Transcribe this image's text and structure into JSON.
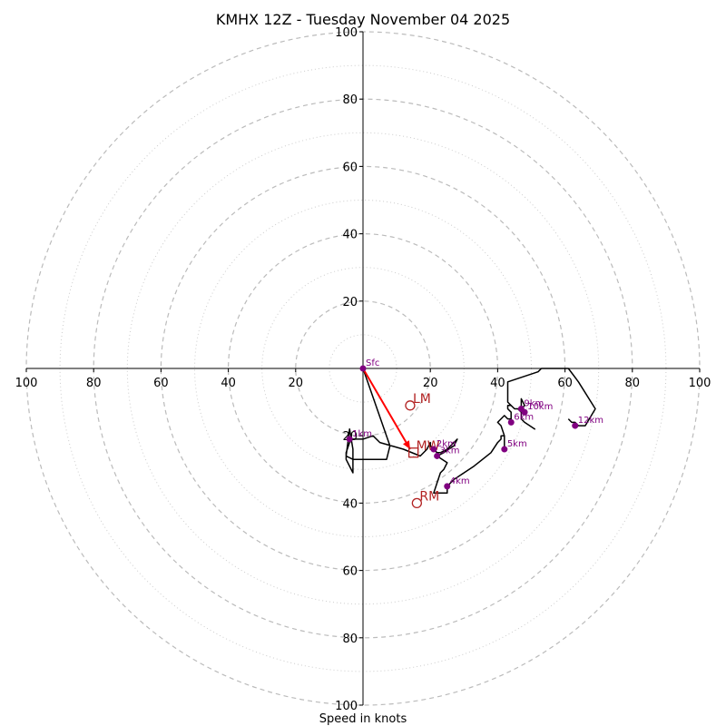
{
  "chart_data": {
    "type": "scatter",
    "title": "KMHX 12Z - Tuesday November 04 2025",
    "xlabel": "Speed in knots",
    "ylabel": "",
    "xlim": [
      -100,
      100
    ],
    "ylim": [
      -100,
      100
    ],
    "rings_major": [
      20,
      40,
      60,
      80,
      100
    ],
    "rings_minor": [
      10,
      30,
      50,
      70,
      90
    ],
    "x_tick_labels": [
      "100",
      "80",
      "60",
      "40",
      "20",
      "20",
      "40",
      "60",
      "80",
      "100"
    ],
    "x_tick_values": [
      -100,
      -80,
      -60,
      -40,
      -20,
      20,
      40,
      60,
      80,
      100
    ],
    "y_tick_labels": [
      "100",
      "80",
      "60",
      "40",
      "20",
      "20",
      "40",
      "60",
      "80",
      "100"
    ],
    "y_tick_values": [
      100,
      80,
      60,
      40,
      20,
      -20,
      -40,
      -60,
      -80,
      -100
    ],
    "colors": {
      "trace": "#000000",
      "height_marker": "#800080",
      "motion": "#b22222",
      "shear_vector": "#ff0000",
      "grid_major": "#bbbbbb",
      "grid_minor": "#cccccc"
    },
    "series": [
      {
        "name": "hodograph",
        "points": [
          [
            0,
            0
          ],
          [
            8,
            -23
          ],
          [
            7,
            -27
          ],
          [
            -3,
            -27
          ],
          [
            -5,
            -26
          ],
          [
            -4,
            -18
          ],
          [
            -3,
            -24
          ],
          [
            -3,
            -31
          ],
          [
            -5,
            -27
          ],
          [
            -5,
            -25
          ],
          [
            -4,
            -22
          ],
          [
            -3,
            -21
          ],
          [
            0,
            -21
          ],
          [
            3,
            -20
          ],
          [
            5,
            -22
          ],
          [
            12,
            -24
          ],
          [
            17,
            -26
          ],
          [
            19,
            -24
          ],
          [
            20,
            -22
          ],
          [
            20,
            -23
          ],
          [
            22,
            -25
          ],
          [
            23,
            -25
          ],
          [
            25,
            -24
          ],
          [
            26,
            -23
          ],
          [
            27,
            -22
          ],
          [
            28,
            -21
          ],
          [
            27,
            -23
          ],
          [
            24,
            -25
          ],
          [
            22,
            -26
          ],
          [
            25,
            -28
          ],
          [
            24,
            -30
          ],
          [
            23,
            -31
          ],
          [
            22,
            -34
          ],
          [
            21,
            -37
          ],
          [
            25,
            -37
          ],
          [
            25,
            -35
          ],
          [
            27,
            -33
          ],
          [
            30,
            -31
          ],
          [
            33,
            -29
          ],
          [
            38,
            -25
          ],
          [
            40,
            -22
          ],
          [
            41,
            -21
          ],
          [
            41,
            -20
          ],
          [
            42,
            -20
          ],
          [
            42,
            -23
          ],
          [
            42,
            -24
          ],
          [
            42,
            -22
          ],
          [
            42,
            -20
          ],
          [
            41,
            -17
          ],
          [
            40,
            -16
          ],
          [
            42,
            -14
          ],
          [
            43,
            -15
          ],
          [
            44,
            -15
          ],
          [
            44,
            -13
          ],
          [
            43,
            -12
          ],
          [
            43,
            -11
          ],
          [
            44,
            -11
          ],
          [
            45,
            -12
          ],
          [
            46,
            -12
          ],
          [
            47,
            -13
          ],
          [
            47,
            -15
          ],
          [
            48,
            -16
          ],
          [
            51,
            -18
          ],
          [
            48,
            -16
          ],
          [
            47,
            -15
          ],
          [
            47,
            -13
          ],
          [
            47,
            -10
          ],
          [
            47,
            -9
          ],
          [
            48,
            -11
          ],
          [
            47,
            -12
          ],
          [
            45,
            -12
          ],
          [
            44,
            -11
          ],
          [
            43,
            -10
          ],
          [
            43,
            -9
          ],
          [
            43,
            -7
          ],
          [
            43,
            -5
          ],
          [
            43,
            -4
          ],
          [
            52,
            -1
          ],
          [
            53,
            0
          ],
          [
            60,
            0
          ],
          [
            61,
            0
          ],
          [
            64,
            -4
          ],
          [
            69,
            -12
          ],
          [
            66,
            -17
          ],
          [
            64,
            -17
          ],
          [
            63,
            -16
          ],
          [
            62,
            -16
          ],
          [
            61,
            -15
          ]
        ]
      }
    ],
    "height_markers": [
      {
        "label": "Sfc",
        "u": 0,
        "v": 0
      },
      {
        "label": "1km",
        "u": -4,
        "v": -21
      },
      {
        "label": "2km",
        "u": 21,
        "v": -24
      },
      {
        "label": "3km",
        "u": 22,
        "v": -26
      },
      {
        "label": "4km",
        "u": 25,
        "v": -35
      },
      {
        "label": "5km",
        "u": 42,
        "v": -24
      },
      {
        "label": "6km",
        "u": 44,
        "v": -16
      },
      {
        "label": "9km",
        "u": 47,
        "v": -12
      },
      {
        "label": "10km",
        "u": 48,
        "v": -13
      },
      {
        "label": "12km",
        "u": 63,
        "v": -17
      }
    ],
    "storm_motions": [
      {
        "label": "LM",
        "u": 14,
        "v": -11,
        "marker": "circle"
      },
      {
        "label": "MW",
        "u": 15,
        "v": -25,
        "marker": "square"
      },
      {
        "label": "RM",
        "u": 16,
        "v": -40,
        "marker": "circle"
      }
    ],
    "shear_vector": {
      "from": [
        0,
        0
      ],
      "to": [
        14,
        -24
      ]
    }
  }
}
